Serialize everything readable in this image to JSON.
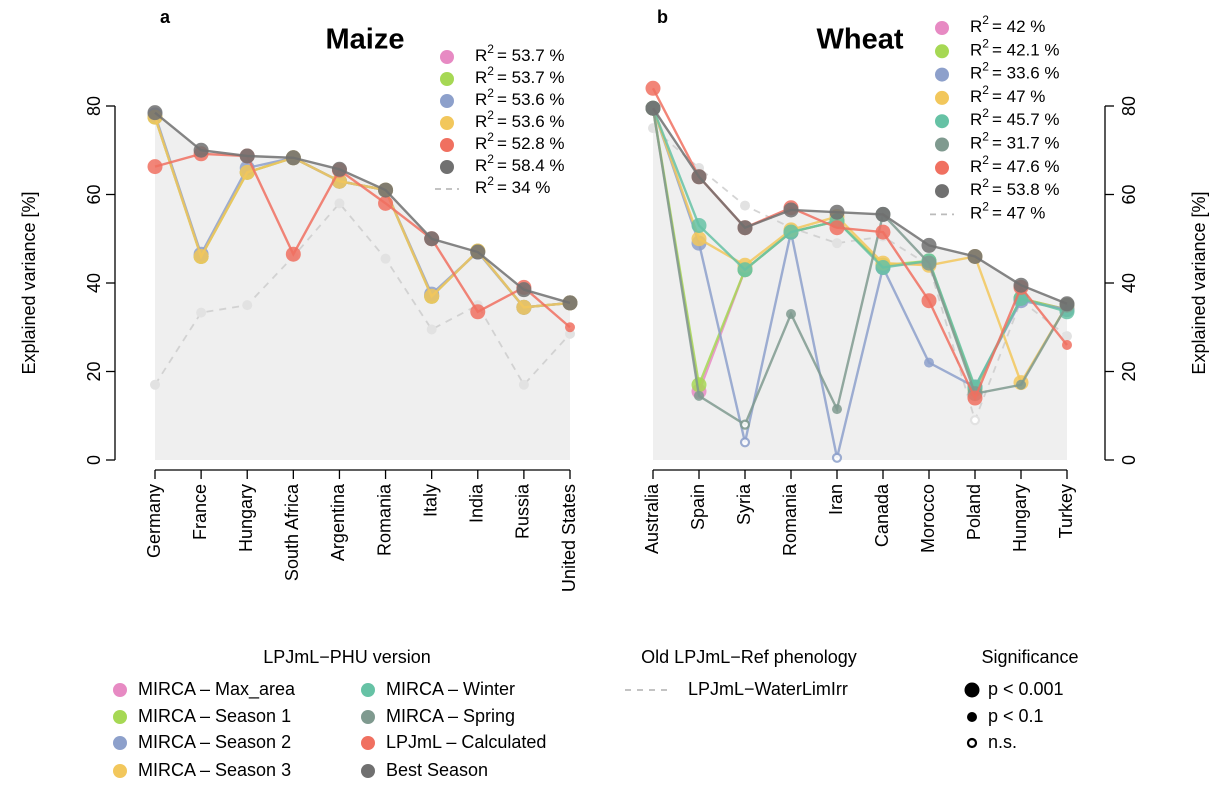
{
  "chart_data": [
    {
      "type": "line",
      "panel": "a",
      "title": "Maize",
      "y_label": "Explained variance [%]",
      "r2_symbol": "R",
      "r2_exponent": "2",
      "categories": [
        "Germany",
        "France",
        "Hungary",
        "South Africa",
        "Argentina",
        "Romania",
        "Italy",
        "India",
        "Russia",
        "United States"
      ],
      "ylim": [
        0,
        80
      ],
      "yticks": [
        0,
        20,
        40,
        60,
        80
      ],
      "y_axis_side": "left",
      "shaded_area": true,
      "series": [
        {
          "name": "MIRCA – Max_area",
          "color": "#e78ac3",
          "r2_label": "= 53.7 %",
          "values": [
            77.5,
            46,
            65,
            68.3,
            63,
            61,
            37,
            47.2,
            34.5,
            35.5
          ]
        },
        {
          "name": "MIRCA – Season 1",
          "color": "#a6d854",
          "r2_label": "= 53.7 %",
          "values": [
            77.5,
            46,
            65,
            68.3,
            63,
            61,
            37,
            47.2,
            34.5,
            35.5
          ]
        },
        {
          "name": "MIRCA – Season 2",
          "color": "#8da0cb",
          "r2_label": "= 53.6 %",
          "values": [
            78,
            46.5,
            66,
            68.3,
            63,
            61,
            37.5,
            47,
            34.5,
            35.5
          ]
        },
        {
          "name": "MIRCA – Season 3",
          "color": "#f2c75c",
          "r2_label": "= 53.6 %",
          "values": [
            77.5,
            46,
            65,
            68.3,
            63,
            61,
            37,
            47.2,
            34.5,
            35.5
          ]
        },
        {
          "name": "LPJmL – Calculated",
          "color": "#f07060",
          "r2_label": "= 52.8 %",
          "values": [
            66.3,
            69.2,
            68.7,
            46.5,
            65.5,
            58,
            50,
            33.5,
            39,
            30
          ],
          "significance": [
            0,
            0,
            0,
            0,
            0,
            0,
            0,
            0,
            0,
            1
          ]
        },
        {
          "name": "Best Season",
          "color": "#707070",
          "r2_label": "= 58.4 %",
          "values": [
            78.5,
            70,
            68.7,
            68.3,
            65.7,
            61,
            50,
            47,
            38.5,
            35.5
          ],
          "envelope": true
        },
        {
          "name": "LPJmL−WaterLimIrr",
          "color": "#cccccc",
          "dashed": true,
          "r2_label": "= 34 %",
          "values": [
            17,
            33.3,
            35,
            46,
            58,
            45.5,
            29.5,
            35,
            17,
            28.5
          ],
          "significance": [
            1,
            1,
            1,
            1,
            1,
            1,
            1,
            1,
            1,
            1
          ]
        }
      ]
    },
    {
      "type": "line",
      "panel": "b",
      "title": "Wheat",
      "y_label": "Explained variance [%]",
      "r2_symbol": "R",
      "r2_exponent": "2",
      "categories": [
        "Australia",
        "Spain",
        "Syria",
        "Romania",
        "Iran",
        "Canada",
        "Morocco",
        "Poland",
        "Hungary",
        "Turkey"
      ],
      "ylim": [
        0,
        80
      ],
      "yticks": [
        0,
        20,
        40,
        60,
        80
      ],
      "y_axis_side": "right",
      "shaded_area": true,
      "series": [
        {
          "name": "MIRCA – Max_area",
          "color": "#e78ac3",
          "r2_label": "= 42 %",
          "values": [
            79.5,
            15.5,
            43,
            51.5,
            54,
            44,
            44.5,
            16,
            36.5,
            34
          ]
        },
        {
          "name": "MIRCA – Season 1",
          "color": "#a6d854",
          "r2_label": "= 42.1 %",
          "values": [
            79.5,
            17,
            43,
            51.5,
            54,
            44,
            45,
            16,
            36.5,
            34
          ]
        },
        {
          "name": "MIRCA – Season 2",
          "color": "#8da0cb",
          "r2_label": "= 33.6 %",
          "values": [
            79.5,
            49,
            4,
            51.5,
            0.5,
            43.5,
            22,
            16.5,
            36,
            34
          ],
          "significance": [
            0,
            0,
            2,
            0,
            2,
            0,
            1,
            0,
            0,
            0
          ]
        },
        {
          "name": "MIRCA – Season 3",
          "color": "#f2c75c",
          "r2_label": "= 47 %",
          "values": [
            79.5,
            50,
            44,
            52,
            55,
            44.5,
            44,
            46,
            17.5,
            35
          ]
        },
        {
          "name": "MIRCA – Winter",
          "color": "#66c2a5",
          "r2_label": "= 45.7 %",
          "values": [
            79.5,
            53,
            43,
            51.5,
            54,
            43.5,
            45,
            16.5,
            36.5,
            33.5
          ]
        },
        {
          "name": "MIRCA – Spring",
          "color": "#7f9a8f",
          "r2_label": "= 31.7 %",
          "values": [
            79.5,
            14.5,
            8,
            33,
            11.5,
            55.5,
            44.5,
            15,
            17,
            35
          ],
          "significance": [
            0,
            1,
            2,
            1,
            1,
            0,
            0,
            0,
            1,
            0
          ]
        },
        {
          "name": "LPJmL – Calculated",
          "color": "#f07060",
          "r2_label": "= 47.6 %",
          "values": [
            84,
            64,
            52.5,
            57,
            52.5,
            51.5,
            36,
            14,
            39,
            26
          ],
          "significance": [
            0,
            0,
            0,
            0,
            0,
            0,
            0,
            0,
            0,
            1
          ]
        },
        {
          "name": "Best Season",
          "color": "#707070",
          "r2_label": "= 53.8 %",
          "values": [
            79.5,
            64,
            52.5,
            56.5,
            56,
            55.5,
            48.5,
            46,
            39.5,
            35.3
          ],
          "envelope": true
        },
        {
          "name": "LPJmL−WaterLimIrr",
          "color": "#cccccc",
          "dashed": true,
          "r2_label": "= 47 %",
          "values": [
            75,
            66,
            57.5,
            52.5,
            49,
            50.5,
            44,
            9,
            36,
            28
          ],
          "significance": [
            1,
            1,
            1,
            1,
            1,
            1,
            1,
            2,
            1,
            1
          ]
        }
      ]
    }
  ],
  "legend": {
    "titles": [
      "LPJmL−PHU version",
      "Old LPJmL−Ref phenology",
      "Significance"
    ],
    "significance": [
      "p < 0.001",
      "p < 0.1",
      "n.s."
    ]
  }
}
